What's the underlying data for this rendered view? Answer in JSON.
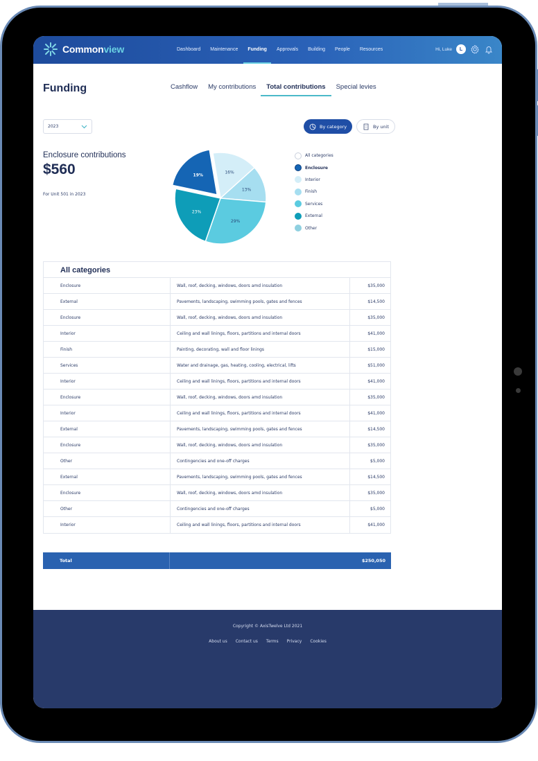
{
  "brand": {
    "name_main": "Common",
    "name_accent": "view"
  },
  "nav": {
    "items": [
      {
        "label": "Dashboard"
      },
      {
        "label": "Maintenance"
      },
      {
        "label": "Funding"
      },
      {
        "label": "Approvals"
      },
      {
        "label": "Building"
      },
      {
        "label": "People"
      },
      {
        "label": "Resources"
      }
    ],
    "active": "Funding",
    "greeting": "Hi, Luke",
    "avatar_initial": "L"
  },
  "page": {
    "title": "Funding",
    "tabs": [
      {
        "label": "Cashflow"
      },
      {
        "label": "My contributions"
      },
      {
        "label": "Total contributions"
      },
      {
        "label": "Special levies"
      }
    ],
    "active_tab": "Total contributions"
  },
  "filters": {
    "year": "2023",
    "by_category_label": "By category",
    "by_unit_label": "By unit"
  },
  "summary": {
    "label": "Enclosure contributions",
    "value": "$560",
    "note": "For Unit 501 in 2023"
  },
  "chart_data": {
    "type": "pie",
    "slices": [
      {
        "label": "Enclosure",
        "value": 19,
        "display": "19%",
        "color": "#1565b4",
        "exploded": true
      },
      {
        "label": "Interior",
        "value": 16,
        "display": "16%",
        "color": "#d4eef8"
      },
      {
        "label": "Finish",
        "value": 13,
        "display": "13%",
        "color": "#a6def0"
      },
      {
        "label": "Services",
        "value": 29,
        "display": "29%",
        "color": "#5bcbe0"
      },
      {
        "label": "External",
        "value": 23,
        "display": "23%",
        "color": "#0e9db8"
      }
    ]
  },
  "legend": {
    "items": [
      {
        "label": "All categories",
        "color": "#ffffff"
      },
      {
        "label": "Enclosure",
        "color": "#1565b4"
      },
      {
        "label": "Interior",
        "color": "#d4eef8"
      },
      {
        "label": "Finish",
        "color": "#a6def0"
      },
      {
        "label": "Services",
        "color": "#5bcbe0"
      },
      {
        "label": "External",
        "color": "#0e9db8"
      },
      {
        "label": "Other",
        "color": "#8fd0e0"
      }
    ],
    "active": "Enclosure"
  },
  "table": {
    "title": "All categories",
    "rows": [
      {
        "category": "Enclosure",
        "description": "Wall, roof, decking, windows, doors amd insulation",
        "amount": "$35,000"
      },
      {
        "category": "External",
        "description": "Pavements, landscaping, swimming pools, gates and fences",
        "amount": "$14,500"
      },
      {
        "category": "Enclosure",
        "description": "Wall, roof, decking, windows, doors amd insulation",
        "amount": "$35,000"
      },
      {
        "category": "Interior",
        "description": "Ceiling and wall linings, floors, partitions and internal doors",
        "amount": "$41,000"
      },
      {
        "category": "Finish",
        "description": "Painting, decorating, wall and floor linings",
        "amount": "$15,000"
      },
      {
        "category": "Services",
        "description": "Water and drainage, gas, heating, cooling, electrical, lifts",
        "amount": "$51,000"
      },
      {
        "category": "Interior",
        "description": "Ceiling and wall linings, floors, partitions and internal doors",
        "amount": "$41,000"
      },
      {
        "category": "Enclosure",
        "description": "Wall, roof, decking, windows, doors amd insulation",
        "amount": "$35,000"
      },
      {
        "category": "Interior",
        "description": "Ceiling and wall linings, floors, partitions and internal doors",
        "amount": "$41,000"
      },
      {
        "category": "External",
        "description": "Pavements, landscaping, swimming pools, gates and fences",
        "amount": "$14,500"
      },
      {
        "category": "Enclosure",
        "description": "Wall, roof, decking, windows, doors amd insulation",
        "amount": "$35,000"
      },
      {
        "category": "Other",
        "description": "Contingencies and one-off charges",
        "amount": "$5,000"
      },
      {
        "category": "External",
        "description": "Pavements, landscaping, swimming pools, gates and fences",
        "amount": "$14,500"
      },
      {
        "category": "Enclosure",
        "description": "Wall, roof, decking, windows, doors amd insulation",
        "amount": "$35,000"
      },
      {
        "category": "Other",
        "description": "Contingencies and one-off charges",
        "amount": "$5,000"
      },
      {
        "category": "Interior",
        "description": "Ceiling and wall linings, floors, partitions and internal doors",
        "amount": "$41,000"
      }
    ],
    "total_label": "Total",
    "total_amount": "$250,050"
  },
  "footer": {
    "copyright": "Copyright © AxisTwelve Ltd 2021",
    "links": [
      {
        "label": "About us"
      },
      {
        "label": "Contact us"
      },
      {
        "label": "Terms"
      },
      {
        "label": "Privacy"
      },
      {
        "label": "Cookies"
      }
    ]
  },
  "icons": {
    "logo": "commonview-logo-icon",
    "settings": "gear-icon",
    "notifications": "bell-icon",
    "dropdown": "chevron-down-icon",
    "by_category": "pie-chart-icon",
    "by_unit": "building-icon"
  }
}
